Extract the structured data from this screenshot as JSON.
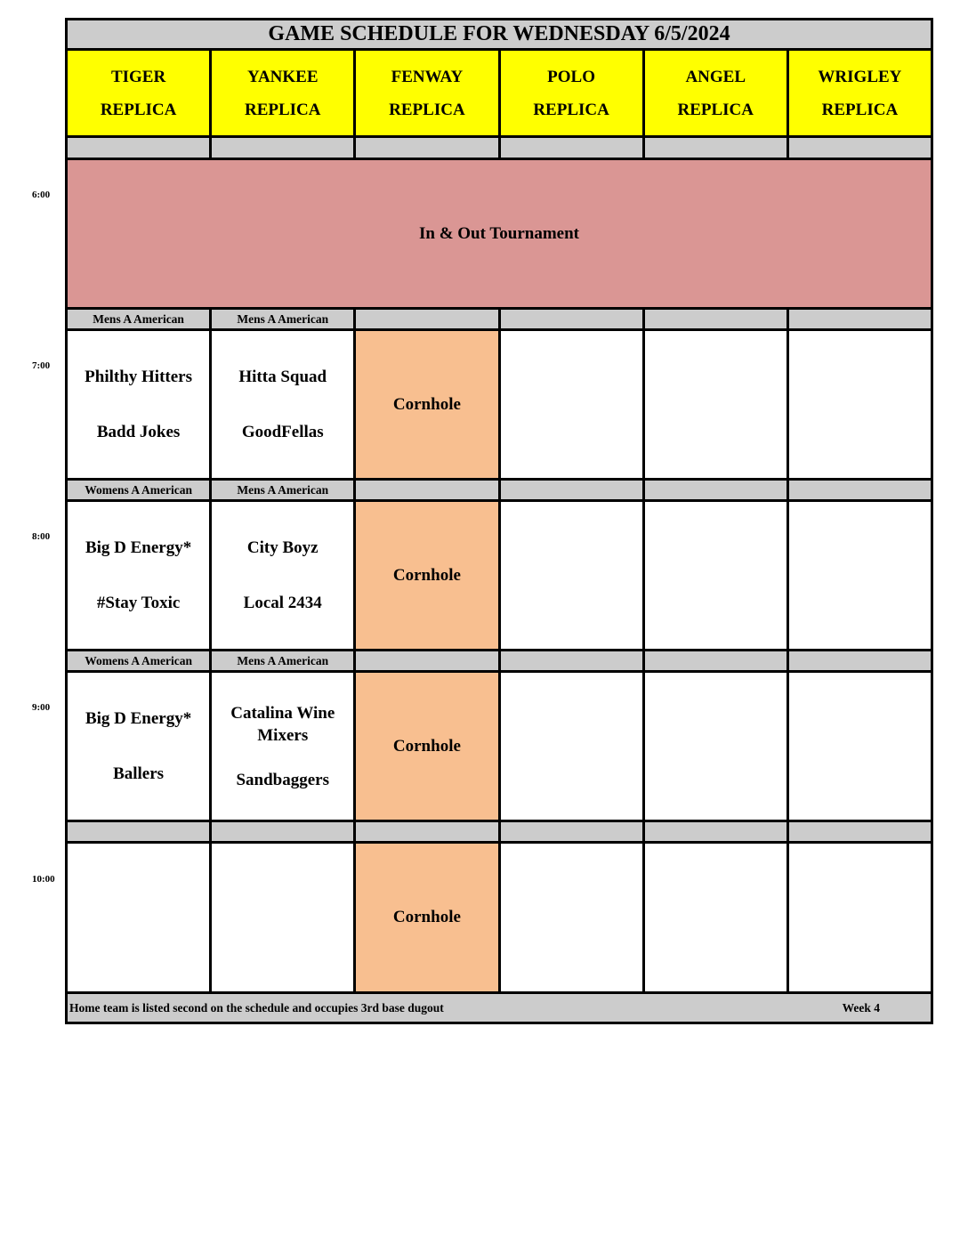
{
  "title": "GAME SCHEDULE FOR WEDNESDAY 6/5/2024",
  "fields": [
    {
      "name": "TIGER",
      "sub": "REPLICA"
    },
    {
      "name": "YANKEE",
      "sub": "REPLICA"
    },
    {
      "name": "FENWAY",
      "sub": "REPLICA"
    },
    {
      "name": "POLO",
      "sub": "REPLICA"
    },
    {
      "name": "ANGEL",
      "sub": "REPLICA"
    },
    {
      "name": "WRIGLEY",
      "sub": "REPLICA"
    }
  ],
  "colors": {
    "header": "#ffff00",
    "divider": "#cccccc",
    "tournament": "#da9694",
    "cornhole": "#f8bf90"
  },
  "slots": [
    {
      "time": "6:00",
      "banner": "In & Out Tournament"
    },
    {
      "time": "7:00",
      "divisions": [
        "Mens A American",
        "Mens A American",
        "",
        "",
        "",
        ""
      ],
      "games": [
        [
          "Philthy Hitters",
          "Badd Jokes"
        ],
        [
          "Hitta Squad",
          "GoodFellas"
        ],
        [
          "Cornhole"
        ],
        [],
        [],
        []
      ]
    },
    {
      "time": "8:00",
      "divisions": [
        "Womens A American",
        "Mens A American",
        "",
        "",
        "",
        ""
      ],
      "games": [
        [
          "Big D Energy*",
          "#Stay Toxic"
        ],
        [
          "City Boyz",
          "Local 2434"
        ],
        [
          "Cornhole"
        ],
        [],
        [],
        []
      ]
    },
    {
      "time": "9:00",
      "divisions": [
        "Womens A American",
        "Mens A American",
        "",
        "",
        "",
        ""
      ],
      "games": [
        [
          "Big D Energy*",
          "Ballers"
        ],
        [
          "Catalina Wine Mixers",
          "Sandbaggers"
        ],
        [
          "Cornhole"
        ],
        [],
        [],
        []
      ]
    },
    {
      "time": "10:00",
      "divisions": [
        "",
        "",
        "",
        "",
        "",
        ""
      ],
      "games": [
        [],
        [],
        [
          "Cornhole"
        ],
        [],
        [],
        []
      ]
    }
  ],
  "footer": {
    "note": "Home team is listed second on the schedule and occupies 3rd base dugout",
    "week": "Week 4"
  }
}
